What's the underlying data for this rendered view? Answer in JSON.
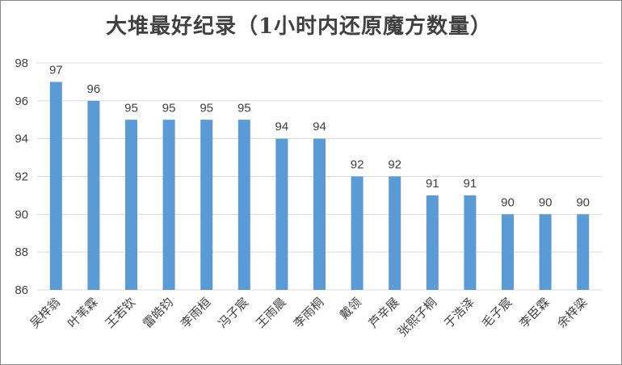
{
  "chart_data": {
    "type": "bar",
    "title": "大堆最好纪录（1小时内还原魔方数量）",
    "categories": [
      "吴梓翁",
      "叶苇霖",
      "王若钦",
      "雷皓钧",
      "李雨桓",
      "冯子宸",
      "王雨晨",
      "李雨桐",
      "戴领",
      "芦辛展",
      "张熙子桐",
      "于浩泽",
      "毛子宸",
      "李臣霖",
      "余梓梁"
    ],
    "values": [
      97,
      96,
      95,
      95,
      95,
      95,
      94,
      94,
      92,
      92,
      91,
      91,
      90,
      90,
      90
    ],
    "ylim": [
      86,
      98
    ],
    "yticks": [
      86,
      88,
      90,
      92,
      94,
      96,
      98
    ],
    "xlabel": "",
    "ylabel": "",
    "grid": true,
    "bar_color": "#5b9bd5",
    "data_labels": true
  }
}
